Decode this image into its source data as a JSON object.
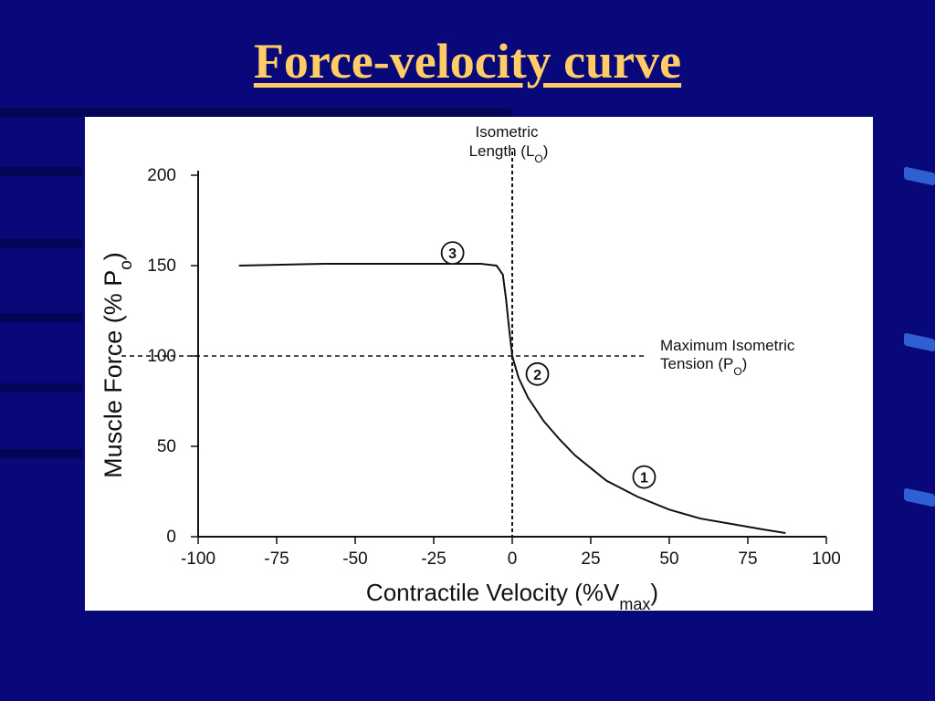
{
  "slide": {
    "title": "Force-velocity curve",
    "colors": {
      "background": "#08087a",
      "title": "#ffcc66",
      "figure": "#ffffff",
      "ink": "#111111"
    }
  },
  "chart_data": {
    "type": "line",
    "xlabel": {
      "text": "Contractile Velocity (%V",
      "sub": "max",
      "after": ")"
    },
    "ylabel": {
      "text": "Muscle Force (% P",
      "sub": "o",
      "after": ")"
    },
    "xlim": [
      -100,
      100
    ],
    "ylim": [
      0,
      200
    ],
    "xticks": [
      -100,
      -75,
      -50,
      -25,
      0,
      25,
      50,
      75,
      100
    ],
    "yticks": [
      0,
      50,
      100,
      150,
      200
    ],
    "grid": false,
    "series": [
      {
        "x": [
          -87,
          -60,
          -30,
          -10,
          -5,
          -3,
          -2,
          -1,
          0,
          2,
          5,
          10,
          15,
          20,
          25,
          30,
          40,
          50,
          60,
          70,
          80,
          87
        ],
        "y": [
          150,
          151,
          151,
          151,
          150,
          145,
          132,
          115,
          100,
          88,
          77,
          64,
          54,
          45,
          38,
          31,
          22,
          15,
          10,
          7,
          4,
          2
        ]
      }
    ],
    "reference_lines": [
      {
        "orientation": "vertical",
        "value": 0,
        "label": "Isometric",
        "label2": "Length (L",
        "sub": "O",
        "after": ")"
      },
      {
        "orientation": "horizontal",
        "value": 100,
        "label": "Maximum Isometric",
        "label2": "Tension (P",
        "sub": "O",
        "after": ")"
      }
    ],
    "annotations": [
      {
        "text": "3",
        "x": -19,
        "y": 157
      },
      {
        "text": "2",
        "x": 8,
        "y": 90
      },
      {
        "text": "1",
        "x": 42,
        "y": 33
      }
    ]
  }
}
